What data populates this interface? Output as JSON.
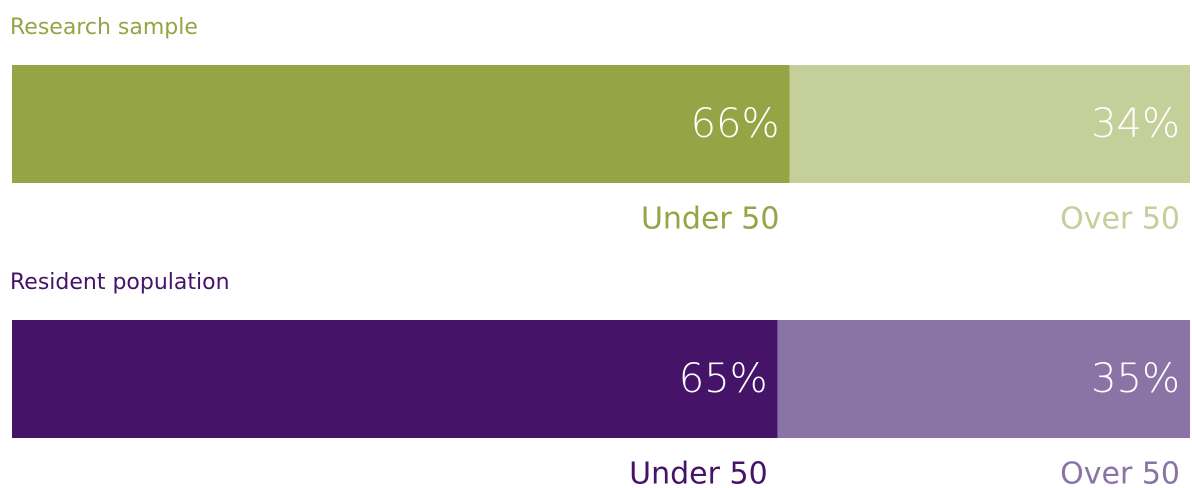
{
  "chart_data": [
    {
      "type": "bar",
      "title": "Research sample",
      "xlim": [
        0,
        100
      ],
      "series": [
        {
          "name": "Under 50",
          "color": "#95a444",
          "values": [
            66
          ],
          "value_labels": [
            "66%"
          ]
        },
        {
          "name": "Over 50",
          "color": "#c5cf9a",
          "values": [
            34
          ],
          "value_labels": [
            "34%"
          ]
        }
      ]
    },
    {
      "type": "bar",
      "title": "Resident population",
      "xlim": [
        0,
        100
      ],
      "series": [
        {
          "name": "Under 50",
          "color": "#451468",
          "values": [
            65
          ],
          "value_labels": [
            "65%"
          ]
        },
        {
          "name": "Over 50",
          "color": "#8a74a6",
          "values": [
            35
          ],
          "value_labels": [
            "35%"
          ]
        }
      ]
    }
  ]
}
